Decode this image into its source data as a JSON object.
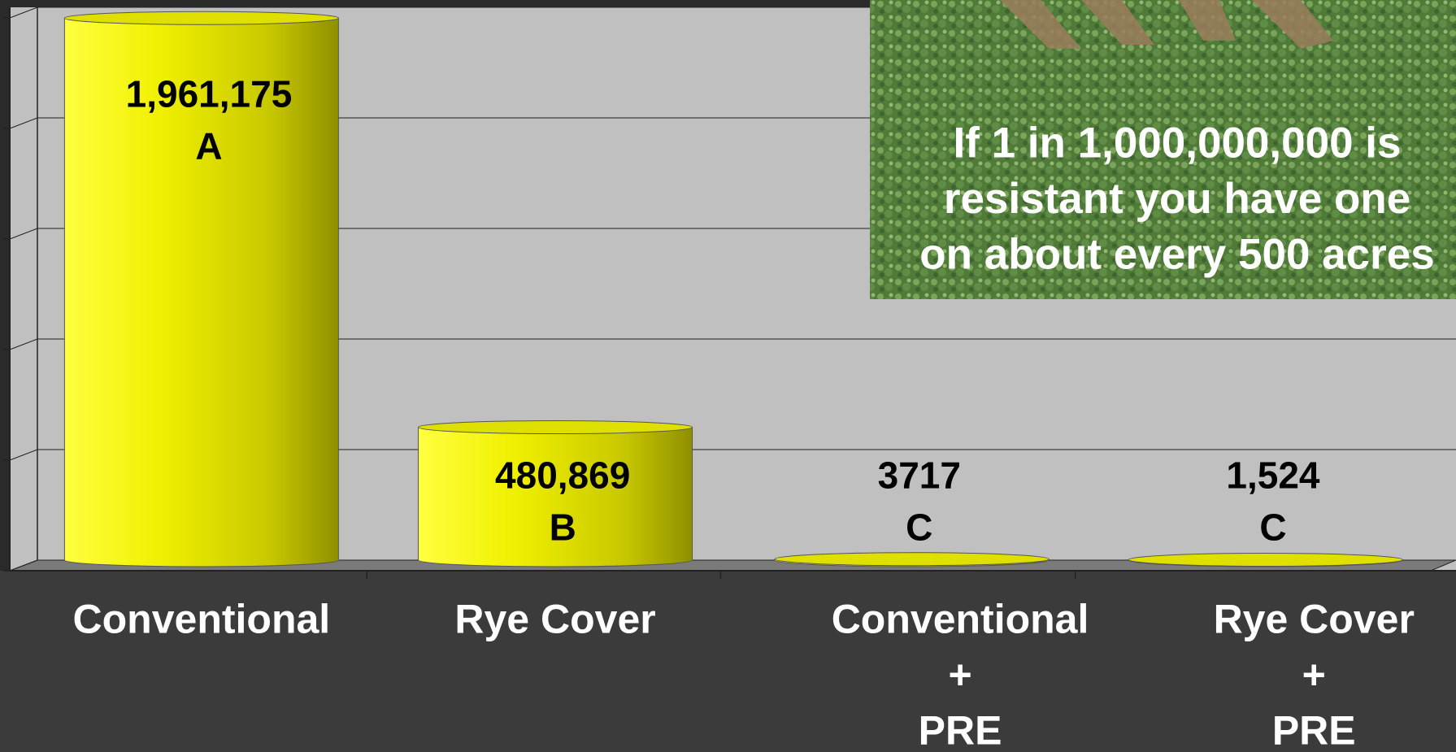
{
  "chart_data": {
    "type": "bar",
    "categories": [
      [
        "Conventional"
      ],
      [
        "Rye Cover"
      ],
      [
        "Conventional",
        "+",
        "PRE"
      ],
      [
        "Rye Cover",
        "+",
        "PRE"
      ]
    ],
    "values": [
      1961175,
      480869,
      3717,
      1524
    ],
    "value_labels": [
      "1,961,175",
      "480,869",
      "3717",
      "1,524"
    ],
    "letters": [
      "A",
      "B",
      "C",
      "C"
    ],
    "color": "#f2f200",
    "ylim": [
      0,
      2000000
    ],
    "yticks": [
      0,
      400000,
      800000,
      1200000,
      1600000,
      2000000
    ],
    "grid": true,
    "annotation": [
      "If 1 in 1,000,000,000 is",
      "resistant you have one",
      "on about every 500 acres"
    ]
  }
}
